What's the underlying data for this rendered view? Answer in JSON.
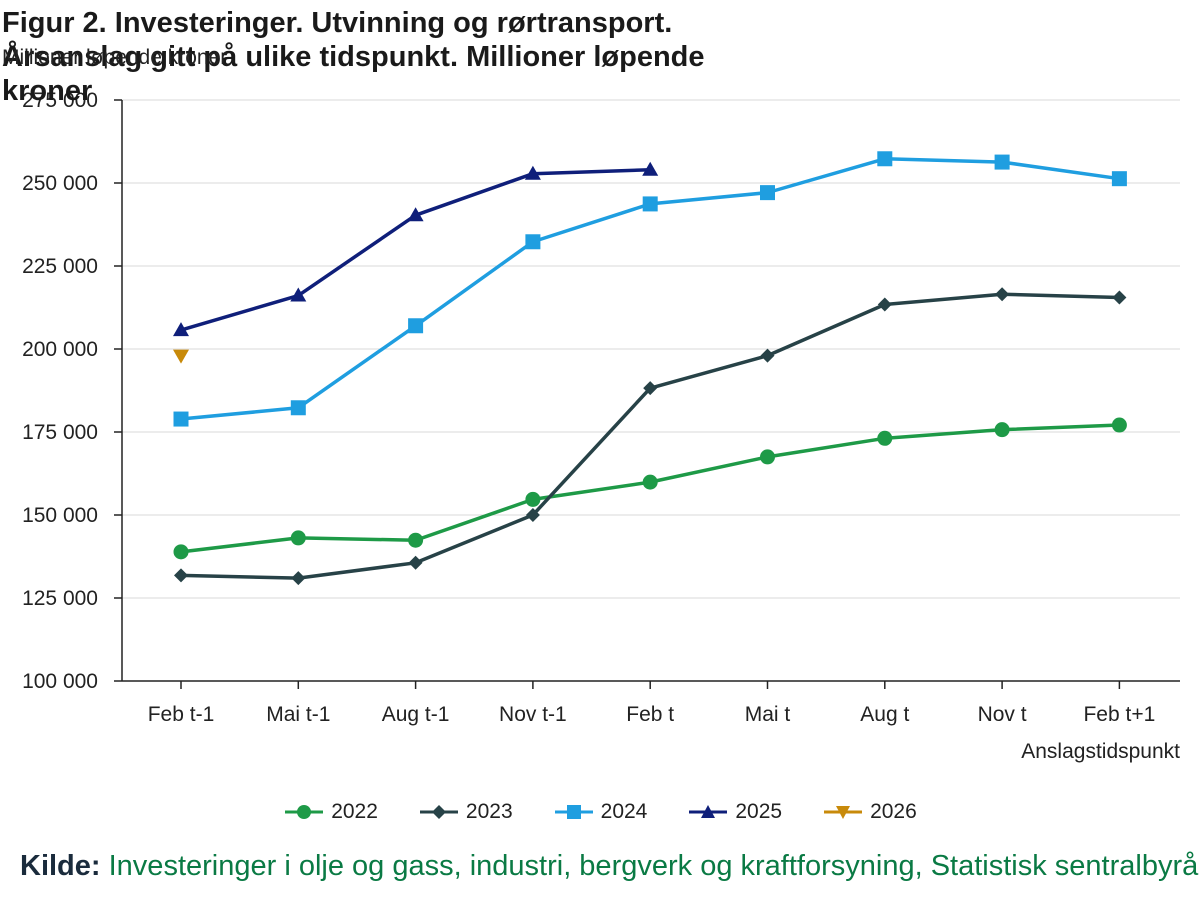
{
  "chart_data": {
    "type": "line",
    "title": "Figur 2. Investeringer. Utvinning og rørtransport. Årsanslag gitt på ulike tidspunkt. Millioner løpende kroner",
    "ylabel": "Millioner løpende kroner",
    "xlabel": "Anslagstidspunkt",
    "categories": [
      "Feb t-1",
      "Mai t-1",
      "Aug t-1",
      "Nov t-1",
      "Feb t",
      "Mai t",
      "Aug t",
      "Nov t",
      "Feb t+1"
    ],
    "ylim": [
      100000,
      275000
    ],
    "yticks": [
      100000,
      125000,
      150000,
      175000,
      200000,
      225000,
      250000,
      275000
    ],
    "ytick_labels": [
      "100 000",
      "125 000",
      "150 000",
      "175 000",
      "200 000",
      "225 000",
      "250 000",
      "275 000"
    ],
    "grid": true,
    "legend_position": "bottom",
    "series": [
      {
        "name": "2022",
        "color": "#1e9a47",
        "marker": "circle",
        "values": [
          138900,
          143100,
          142400,
          154700,
          159900,
          167500,
          173100,
          175700,
          177100
        ]
      },
      {
        "name": "2023",
        "color": "#274247",
        "marker": "diamond",
        "values": [
          131800,
          131000,
          135600,
          150000,
          188200,
          198000,
          213400,
          216500,
          215500
        ]
      },
      {
        "name": "2024",
        "color": "#1f9ee0",
        "marker": "square",
        "values": [
          178900,
          182300,
          207000,
          232300,
          243700,
          247100,
          257300,
          256300,
          251300
        ]
      },
      {
        "name": "2025",
        "color": "#0f1f7a",
        "marker": "triangle",
        "values": [
          205700,
          216100,
          240300,
          252800,
          254000,
          null,
          null,
          null,
          null
        ]
      },
      {
        "name": "2026",
        "color": "#c88a0a",
        "marker": "triangle-down",
        "values": [
          198000,
          null,
          null,
          null,
          null,
          null,
          null,
          null,
          null
        ]
      }
    ]
  },
  "source": {
    "label": "Kilde:",
    "text": "Investeringer i olje og gass, industri, bergverk og kraftforsyning, Statistisk sentralbyrå"
  }
}
